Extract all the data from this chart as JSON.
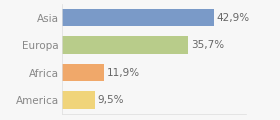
{
  "categories": [
    "America",
    "Africa",
    "Europa",
    "Asia"
  ],
  "values": [
    9.5,
    11.9,
    35.7,
    42.9
  ],
  "labels": [
    "9,5%",
    "11,9%",
    "35,7%",
    "42,9%"
  ],
  "bar_colors": [
    "#f0d47a",
    "#f0a86a",
    "#b8cc8a",
    "#7a9ac8"
  ],
  "background_color": "#f7f7f7",
  "xlim": [
    0,
    52
  ],
  "bar_height": 0.65,
  "label_fontsize": 7.5,
  "tick_fontsize": 7.5,
  "label_color": "#666666",
  "tick_color": "#888888"
}
